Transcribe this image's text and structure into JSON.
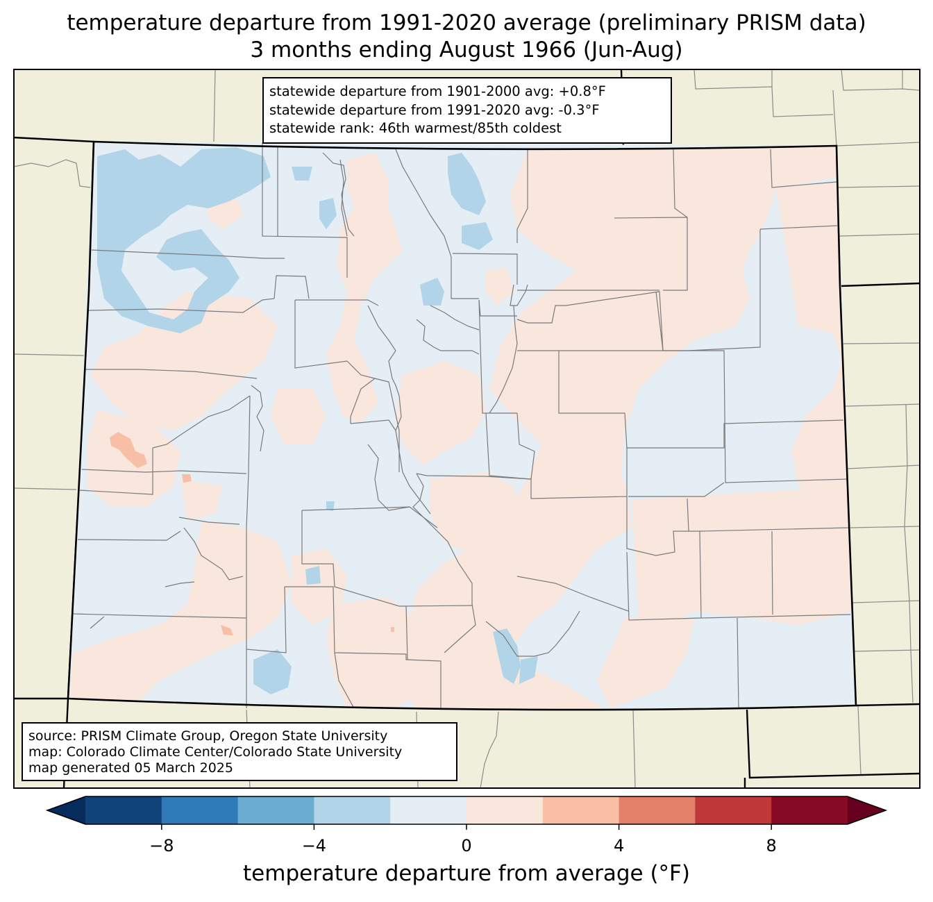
{
  "title": {
    "line1": "temperature departure from 1991-2020 average (preliminary PRISM data)",
    "line2": "3 months ending August 1966 (Jun-Aug)"
  },
  "stats": {
    "line1": "statewide departure from 1901-2000 avg: +0.8°F",
    "line2": "statewide departure from 1991-2020 avg: -0.3°F",
    "line3": "statewide rank: 46th warmest/85th coldest"
  },
  "credits": {
    "line1": "source: PRISM Climate Group, Oregon State University",
    "line2": "map: Colorado Climate Center/Colorado State University",
    "line3": "map generated 05 March 2025"
  },
  "colorbar": {
    "label": "temperature departure from average (°F)",
    "ticks": [
      "−8",
      "−4",
      "0",
      "4",
      "8"
    ],
    "tick_values": [
      -8,
      -4,
      0,
      4,
      8
    ],
    "range": [
      -10,
      10
    ],
    "bounds": [
      -10,
      -8,
      -6,
      -4,
      -2,
      0,
      2,
      4,
      6,
      8,
      10
    ],
    "colors": [
      "#0f437a",
      "#2e7bb8",
      "#6aacd2",
      "#b1d4e8",
      "#e5edf5",
      "#f9e7de",
      "#f8bea6",
      "#e3806a",
      "#c0383a",
      "#870a24"
    ],
    "extend_low_color": "#062c5e",
    "extend_high_color": "#67001f"
  },
  "map_colors": {
    "background": "#f0efdc",
    "near_normal_cool": "#e5edf5",
    "near_normal_warm": "#f9e7de",
    "cool": "#b1d4e8",
    "warm": "#f8bea6"
  }
}
